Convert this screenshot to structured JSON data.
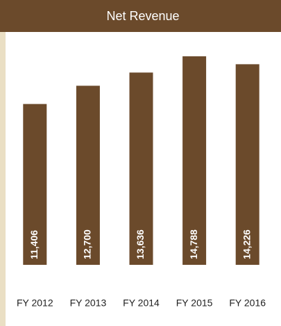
{
  "chart_data": {
    "type": "bar",
    "title": "Net Revenue",
    "categories": [
      "FY 2012",
      "FY 2013",
      "FY 2014",
      "FY 2015",
      "FY 2016"
    ],
    "values": [
      11406,
      12700,
      13636,
      14788,
      14226
    ],
    "value_labels": [
      "11,406",
      "12,700",
      "13,636",
      "14,788",
      "14,226"
    ],
    "color": "#6b4a2b"
  }
}
